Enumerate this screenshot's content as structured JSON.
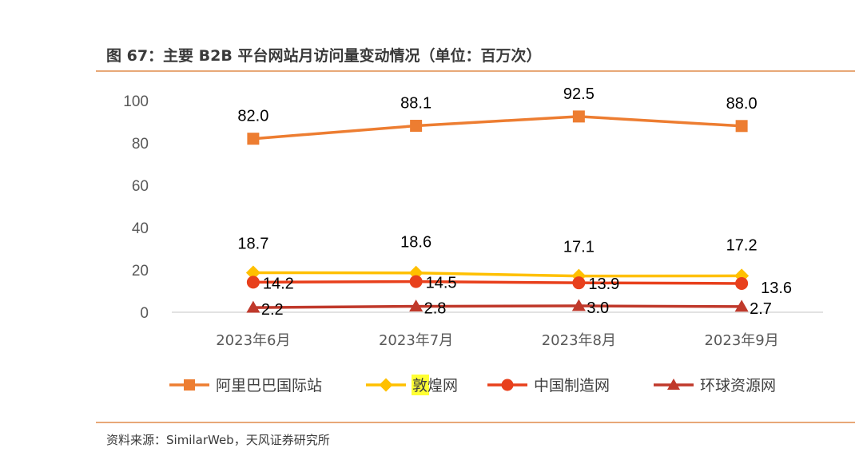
{
  "header": {
    "title": "图 67：主要 B2B 平台网站月访问量变动情况（单位：百万次）"
  },
  "footer": {
    "source": "资料来源：SimilarWeb，天风证券研究所"
  },
  "chart_data": {
    "type": "line",
    "title": "图 67：主要 B2B 平台网站月访问量变动情况（单位：百万次）",
    "categories": [
      "2023年6月",
      "2023年7月",
      "2023年8月",
      "2023年9月"
    ],
    "ylim": [
      0,
      100
    ],
    "yticks": [
      "0",
      "20",
      "40",
      "60",
      "80",
      "100"
    ],
    "series": [
      {
        "name": "阿里巴巴国际站",
        "values": [
          82.0,
          88.1,
          92.5,
          88.0
        ],
        "labels": [
          "82.0",
          "88.1",
          "92.5",
          "88.0"
        ],
        "color": "#ED7D31",
        "marker": "square"
      },
      {
        "name": "敦煌网",
        "values": [
          18.7,
          18.6,
          17.1,
          17.2
        ],
        "labels": [
          "18.7",
          "18.6",
          "17.1",
          "17.2"
        ],
        "color": "#FFC000",
        "marker": "diamond"
      },
      {
        "name": "中国制造网",
        "values": [
          14.2,
          14.5,
          13.9,
          13.6
        ],
        "labels": [
          "14.2",
          "14.5",
          "13.9",
          "13.6"
        ],
        "color": "#E8401C",
        "marker": "circle"
      },
      {
        "name": "环球资源网",
        "values": [
          2.2,
          2.8,
          3.0,
          2.7
        ],
        "labels": [
          "2.2",
          "2.8",
          "3.0",
          "2.7"
        ],
        "color": "#C0392B",
        "marker": "triangle"
      }
    ],
    "legend_position": "bottom",
    "legend_highlight": {
      "series_index": 1,
      "chars": 1,
      "color": "#FFFF33"
    }
  }
}
